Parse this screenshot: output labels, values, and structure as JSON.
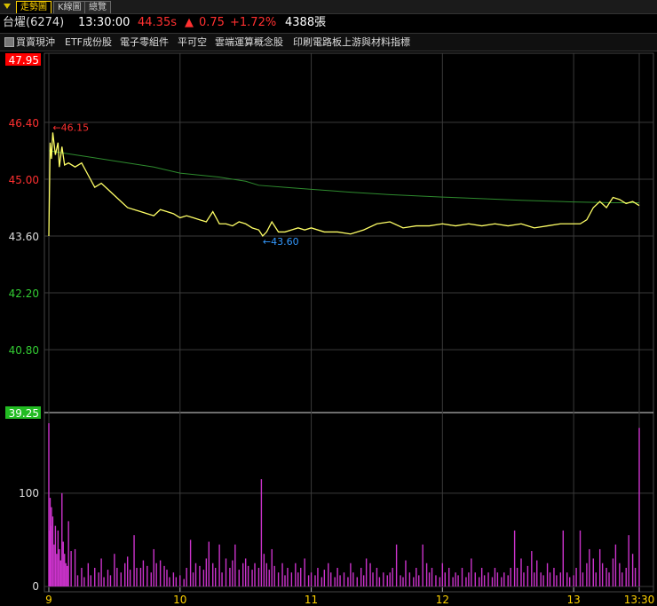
{
  "tabs": [
    {
      "label": "走勢圖",
      "active": true
    },
    {
      "label": "K線圖",
      "active": false
    },
    {
      "label": "總覽",
      "active": false
    }
  ],
  "quote": {
    "name": "台燿(6274)",
    "time": "13:30:00",
    "price": "44.35s",
    "change_arrow": "▲",
    "change": "0.75",
    "change_pct": "+1.72%",
    "volume": "4388張"
  },
  "categories": [
    "買賣現沖",
    "ETF成份股",
    "電子零組件",
    "平可空",
    "雲端運算概念股",
    "印刷電路板上游與材料指標"
  ],
  "colors": {
    "up": "#ff3030",
    "down": "#33cc33",
    "price_line": "#ffff66",
    "avg_line": "#2e8b2e",
    "volume": "#cc33cc",
    "high_label": "#ff3030",
    "low_label": "#3399ff",
    "open_label_bg": "#33cc33",
    "limit_up_bg": "#ff0000",
    "limit_down_bg": "#22bb22"
  },
  "chart_data": {
    "type": "line",
    "price_ticks": [
      "47.95",
      "46.40",
      "45.00",
      "43.60",
      "42.20",
      "40.80",
      "39.25"
    ],
    "price_ylim": [
      39.25,
      47.95
    ],
    "reference_price": 43.6,
    "high_label": "←46.15",
    "low_label": "←43.60",
    "x_ticks": [
      "9",
      "10",
      "11",
      "12",
      "13",
      "13:30"
    ],
    "x_hours": [
      9,
      10,
      11,
      12,
      13,
      13.5
    ],
    "volume_ticks": [
      "100",
      "0"
    ],
    "volume_ylim": [
      0,
      175
    ],
    "series": [
      {
        "x": [
          9.0,
          9.01,
          9.02,
          9.03,
          9.05,
          9.07,
          9.08,
          9.1,
          9.12,
          9.15,
          9.2,
          9.25,
          9.3,
          9.35,
          9.4,
          9.45,
          9.5,
          9.55,
          9.6,
          9.65,
          9.7,
          9.75,
          9.8,
          9.85,
          9.9,
          9.95,
          10.0,
          10.05,
          10.1,
          10.15,
          10.2,
          10.25,
          10.3,
          10.35,
          10.4,
          10.45,
          10.5,
          10.55,
          10.6,
          10.63,
          10.66,
          10.7,
          10.75,
          10.8,
          10.85,
          10.9,
          10.95,
          11.0,
          11.1,
          11.2,
          11.3,
          11.4,
          11.5,
          11.6,
          11.7,
          11.8,
          11.9,
          12.0,
          12.1,
          12.2,
          12.3,
          12.4,
          12.5,
          12.6,
          12.7,
          12.8,
          12.9,
          13.0,
          13.05,
          13.1,
          13.15,
          13.2,
          13.25,
          13.3,
          13.35,
          13.4,
          13.45,
          13.5
        ],
        "values": [
          43.6,
          45.9,
          45.5,
          46.15,
          45.6,
          45.9,
          45.3,
          45.8,
          45.35,
          45.4,
          45.3,
          45.4,
          45.1,
          44.8,
          44.9,
          44.75,
          44.6,
          44.45,
          44.3,
          44.25,
          44.2,
          44.15,
          44.1,
          44.25,
          44.2,
          44.15,
          44.05,
          44.1,
          44.05,
          44.0,
          43.95,
          44.2,
          43.9,
          43.9,
          43.85,
          43.95,
          43.9,
          43.8,
          43.75,
          43.6,
          43.7,
          43.95,
          43.7,
          43.7,
          43.75,
          43.8,
          43.75,
          43.8,
          43.7,
          43.7,
          43.65,
          43.75,
          43.9,
          43.95,
          43.8,
          43.85,
          43.85,
          43.9,
          43.85,
          43.9,
          43.85,
          43.9,
          43.85,
          43.9,
          43.8,
          43.85,
          43.9,
          43.9,
          43.9,
          44.0,
          44.3,
          44.45,
          44.3,
          44.55,
          44.5,
          44.4,
          44.45,
          44.35
        ]
      },
      {
        "x": [
          9.0,
          9.1,
          9.3,
          9.5,
          9.8,
          10.0,
          10.3,
          10.5,
          10.6,
          10.8,
          11.0,
          11.3,
          11.6,
          12.0,
          12.3,
          12.6,
          13.0,
          13.3,
          13.5
        ],
        "values": [
          45.7,
          45.65,
          45.55,
          45.45,
          45.3,
          45.15,
          45.05,
          44.95,
          44.85,
          44.8,
          44.75,
          44.68,
          44.62,
          44.56,
          44.52,
          44.48,
          44.44,
          44.42,
          44.42
        ]
      }
    ],
    "volume": [
      {
        "x": 9.0,
        "v": 175
      },
      {
        "x": 9.005,
        "v": 60
      },
      {
        "x": 9.01,
        "v": 95
      },
      {
        "x": 9.015,
        "v": 65
      },
      {
        "x": 9.02,
        "v": 85
      },
      {
        "x": 9.03,
        "v": 75
      },
      {
        "x": 9.04,
        "v": 45
      },
      {
        "x": 9.05,
        "v": 65
      },
      {
        "x": 9.06,
        "v": 35
      },
      {
        "x": 9.07,
        "v": 60
      },
      {
        "x": 9.08,
        "v": 40
      },
      {
        "x": 9.09,
        "v": 28
      },
      {
        "x": 9.1,
        "v": 100
      },
      {
        "x": 9.11,
        "v": 48
      },
      {
        "x": 9.12,
        "v": 35
      },
      {
        "x": 9.13,
        "v": 25
      },
      {
        "x": 9.14,
        "v": 22
      },
      {
        "x": 9.15,
        "v": 70
      },
      {
        "x": 9.17,
        "v": 38
      },
      {
        "x": 9.2,
        "v": 40
      },
      {
        "x": 9.22,
        "v": 12
      },
      {
        "x": 9.25,
        "v": 20
      },
      {
        "x": 9.27,
        "v": 10
      },
      {
        "x": 9.3,
        "v": 25
      },
      {
        "x": 9.32,
        "v": 12
      },
      {
        "x": 9.35,
        "v": 20
      },
      {
        "x": 9.38,
        "v": 15
      },
      {
        "x": 9.4,
        "v": 30
      },
      {
        "x": 9.42,
        "v": 10
      },
      {
        "x": 9.45,
        "v": 18
      },
      {
        "x": 9.47,
        "v": 12
      },
      {
        "x": 9.5,
        "v": 35
      },
      {
        "x": 9.52,
        "v": 20
      },
      {
        "x": 9.55,
        "v": 15
      },
      {
        "x": 9.58,
        "v": 25
      },
      {
        "x": 9.6,
        "v": 32
      },
      {
        "x": 9.62,
        "v": 18
      },
      {
        "x": 9.65,
        "v": 55
      },
      {
        "x": 9.67,
        "v": 20
      },
      {
        "x": 9.7,
        "v": 20
      },
      {
        "x": 9.72,
        "v": 28
      },
      {
        "x": 9.75,
        "v": 22
      },
      {
        "x": 9.78,
        "v": 15
      },
      {
        "x": 9.8,
        "v": 40
      },
      {
        "x": 9.82,
        "v": 25
      },
      {
        "x": 9.85,
        "v": 28
      },
      {
        "x": 9.88,
        "v": 22
      },
      {
        "x": 9.9,
        "v": 18
      },
      {
        "x": 9.92,
        "v": 10
      },
      {
        "x": 9.95,
        "v": 15
      },
      {
        "x": 9.97,
        "v": 10
      },
      {
        "x": 10.0,
        "v": 12
      },
      {
        "x": 10.03,
        "v": 8
      },
      {
        "x": 10.05,
        "v": 20
      },
      {
        "x": 10.08,
        "v": 50
      },
      {
        "x": 10.1,
        "v": 15
      },
      {
        "x": 10.12,
        "v": 25
      },
      {
        "x": 10.15,
        "v": 22
      },
      {
        "x": 10.18,
        "v": 18
      },
      {
        "x": 10.2,
        "v": 30
      },
      {
        "x": 10.22,
        "v": 48
      },
      {
        "x": 10.25,
        "v": 25
      },
      {
        "x": 10.27,
        "v": 20
      },
      {
        "x": 10.3,
        "v": 45
      },
      {
        "x": 10.32,
        "v": 15
      },
      {
        "x": 10.35,
        "v": 30
      },
      {
        "x": 10.38,
        "v": 20
      },
      {
        "x": 10.4,
        "v": 28
      },
      {
        "x": 10.42,
        "v": 45
      },
      {
        "x": 10.45,
        "v": 18
      },
      {
        "x": 10.48,
        "v": 25
      },
      {
        "x": 10.5,
        "v": 30
      },
      {
        "x": 10.52,
        "v": 22
      },
      {
        "x": 10.55,
        "v": 18
      },
      {
        "x": 10.57,
        "v": 25
      },
      {
        "x": 10.6,
        "v": 20
      },
      {
        "x": 10.62,
        "v": 115
      },
      {
        "x": 10.64,
        "v": 35
      },
      {
        "x": 10.66,
        "v": 25
      },
      {
        "x": 10.68,
        "v": 18
      },
      {
        "x": 10.7,
        "v": 40
      },
      {
        "x": 10.72,
        "v": 22
      },
      {
        "x": 10.75,
        "v": 15
      },
      {
        "x": 10.78,
        "v": 25
      },
      {
        "x": 10.8,
        "v": 12
      },
      {
        "x": 10.82,
        "v": 20
      },
      {
        "x": 10.85,
        "v": 15
      },
      {
        "x": 10.88,
        "v": 25
      },
      {
        "x": 10.9,
        "v": 15
      },
      {
        "x": 10.92,
        "v": 20
      },
      {
        "x": 10.95,
        "v": 30
      },
      {
        "x": 10.98,
        "v": 12
      },
      {
        "x": 11.0,
        "v": 15
      },
      {
        "x": 11.03,
        "v": 12
      },
      {
        "x": 11.05,
        "v": 20
      },
      {
        "x": 11.08,
        "v": 10
      },
      {
        "x": 11.1,
        "v": 18
      },
      {
        "x": 11.13,
        "v": 25
      },
      {
        "x": 11.15,
        "v": 15
      },
      {
        "x": 11.18,
        "v": 10
      },
      {
        "x": 11.2,
        "v": 20
      },
      {
        "x": 11.22,
        "v": 12
      },
      {
        "x": 11.25,
        "v": 15
      },
      {
        "x": 11.28,
        "v": 10
      },
      {
        "x": 11.3,
        "v": 25
      },
      {
        "x": 11.32,
        "v": 15
      },
      {
        "x": 11.35,
        "v": 10
      },
      {
        "x": 11.38,
        "v": 20
      },
      {
        "x": 11.4,
        "v": 12
      },
      {
        "x": 11.42,
        "v": 30
      },
      {
        "x": 11.45,
        "v": 25
      },
      {
        "x": 11.47,
        "v": 15
      },
      {
        "x": 11.5,
        "v": 20
      },
      {
        "x": 11.52,
        "v": 10
      },
      {
        "x": 11.55,
        "v": 15
      },
      {
        "x": 11.58,
        "v": 12
      },
      {
        "x": 11.6,
        "v": 15
      },
      {
        "x": 11.62,
        "v": 20
      },
      {
        "x": 11.65,
        "v": 45
      },
      {
        "x": 11.68,
        "v": 12
      },
      {
        "x": 11.7,
        "v": 10
      },
      {
        "x": 11.72,
        "v": 28
      },
      {
        "x": 11.75,
        "v": 15
      },
      {
        "x": 11.78,
        "v": 10
      },
      {
        "x": 11.8,
        "v": 20
      },
      {
        "x": 11.82,
        "v": 12
      },
      {
        "x": 11.85,
        "v": 45
      },
      {
        "x": 11.88,
        "v": 25
      },
      {
        "x": 11.9,
        "v": 15
      },
      {
        "x": 11.92,
        "v": 20
      },
      {
        "x": 11.95,
        "v": 12
      },
      {
        "x": 11.98,
        "v": 10
      },
      {
        "x": 12.0,
        "v": 25
      },
      {
        "x": 12.02,
        "v": 15
      },
      {
        "x": 12.05,
        "v": 20
      },
      {
        "x": 12.08,
        "v": 10
      },
      {
        "x": 12.1,
        "v": 15
      },
      {
        "x": 12.12,
        "v": 12
      },
      {
        "x": 12.15,
        "v": 20
      },
      {
        "x": 12.18,
        "v": 10
      },
      {
        "x": 12.2,
        "v": 15
      },
      {
        "x": 12.22,
        "v": 30
      },
      {
        "x": 12.25,
        "v": 15
      },
      {
        "x": 12.28,
        "v": 10
      },
      {
        "x": 12.3,
        "v": 20
      },
      {
        "x": 12.32,
        "v": 12
      },
      {
        "x": 12.35,
        "v": 15
      },
      {
        "x": 12.38,
        "v": 10
      },
      {
        "x": 12.4,
        "v": 20
      },
      {
        "x": 12.42,
        "v": 15
      },
      {
        "x": 12.45,
        "v": 10
      },
      {
        "x": 12.47,
        "v": 15
      },
      {
        "x": 12.5,
        "v": 12
      },
      {
        "x": 12.52,
        "v": 20
      },
      {
        "x": 12.55,
        "v": 60
      },
      {
        "x": 12.57,
        "v": 20
      },
      {
        "x": 12.6,
        "v": 30
      },
      {
        "x": 12.62,
        "v": 15
      },
      {
        "x": 12.65,
        "v": 22
      },
      {
        "x": 12.68,
        "v": 38
      },
      {
        "x": 12.7,
        "v": 15
      },
      {
        "x": 12.72,
        "v": 28
      },
      {
        "x": 12.75,
        "v": 15
      },
      {
        "x": 12.77,
        "v": 12
      },
      {
        "x": 12.8,
        "v": 25
      },
      {
        "x": 12.82,
        "v": 15
      },
      {
        "x": 12.85,
        "v": 20
      },
      {
        "x": 12.87,
        "v": 12
      },
      {
        "x": 12.9,
        "v": 15
      },
      {
        "x": 12.92,
        "v": 60
      },
      {
        "x": 12.95,
        "v": 15
      },
      {
        "x": 12.97,
        "v": 10
      },
      {
        "x": 13.0,
        "v": 12
      },
      {
        "x": 13.02,
        "v": 20
      },
      {
        "x": 13.05,
        "v": 60
      },
      {
        "x": 13.07,
        "v": 15
      },
      {
        "x": 13.1,
        "v": 25
      },
      {
        "x": 13.12,
        "v": 40
      },
      {
        "x": 13.15,
        "v": 30
      },
      {
        "x": 13.17,
        "v": 15
      },
      {
        "x": 13.2,
        "v": 40
      },
      {
        "x": 13.22,
        "v": 25
      },
      {
        "x": 13.25,
        "v": 20
      },
      {
        "x": 13.27,
        "v": 15
      },
      {
        "x": 13.3,
        "v": 30
      },
      {
        "x": 13.32,
        "v": 45
      },
      {
        "x": 13.35,
        "v": 25
      },
      {
        "x": 13.37,
        "v": 15
      },
      {
        "x": 13.4,
        "v": 20
      },
      {
        "x": 13.42,
        "v": 55
      },
      {
        "x": 13.45,
        "v": 35
      },
      {
        "x": 13.47,
        "v": 20
      },
      {
        "x": 13.5,
        "v": 170
      }
    ]
  }
}
